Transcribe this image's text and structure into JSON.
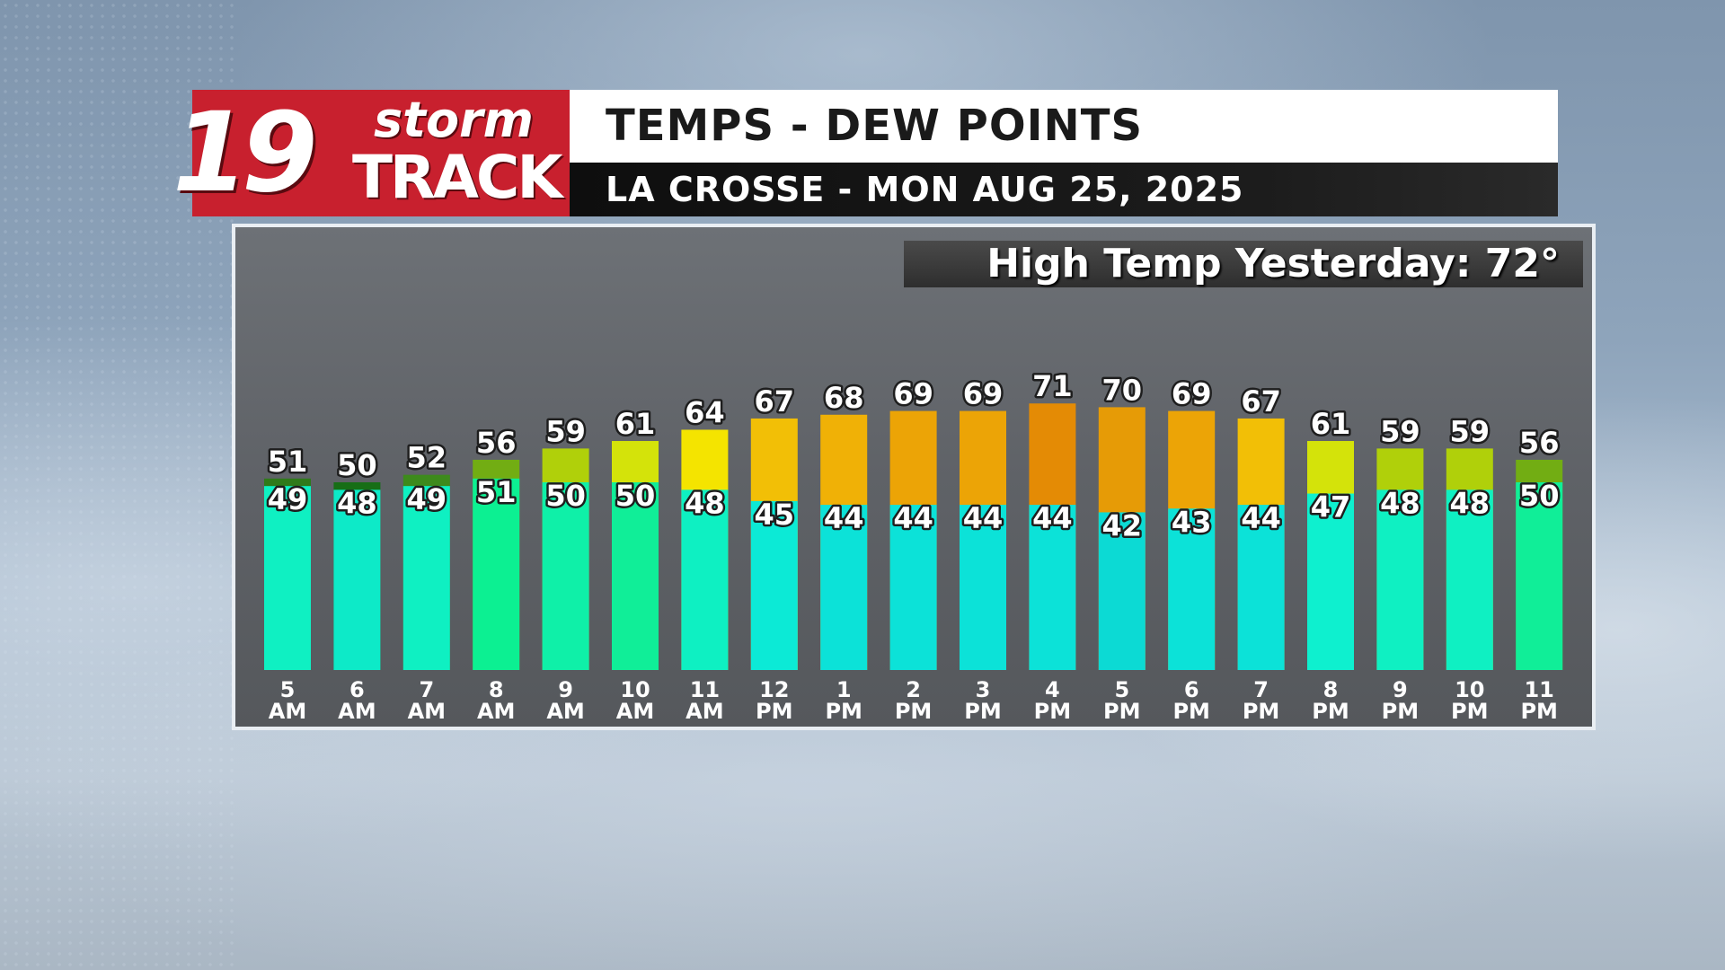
{
  "logo": {
    "number": "19",
    "word1": "storm",
    "word2": "TRACK",
    "color": "#c8202e"
  },
  "header": {
    "title": "TEMPS - DEW POINTS",
    "subtitle": "LA CROSSE - MON AUG 25, 2025"
  },
  "badge": {
    "text": "High Temp Yesterday:  72°"
  },
  "chart_data": {
    "type": "bar",
    "categories": [
      [
        "5",
        "AM"
      ],
      [
        "6",
        "AM"
      ],
      [
        "7",
        "AM"
      ],
      [
        "8",
        "AM"
      ],
      [
        "9",
        "AM"
      ],
      [
        "10",
        "AM"
      ],
      [
        "11",
        "AM"
      ],
      [
        "12",
        "PM"
      ],
      [
        "1",
        "PM"
      ],
      [
        "2",
        "PM"
      ],
      [
        "3",
        "PM"
      ],
      [
        "4",
        "PM"
      ],
      [
        "5",
        "PM"
      ],
      [
        "6",
        "PM"
      ],
      [
        "7",
        "PM"
      ],
      [
        "8",
        "PM"
      ],
      [
        "9",
        "PM"
      ],
      [
        "10",
        "PM"
      ],
      [
        "11",
        "PM"
      ]
    ],
    "series": [
      {
        "values": [
          51,
          50,
          52,
          56,
          59,
          61,
          64,
          67,
          68,
          69,
          69,
          71,
          70,
          69,
          67,
          61,
          59,
          59,
          56
        ]
      },
      {
        "values": [
          49,
          48,
          49,
          51,
          50,
          50,
          48,
          45,
          44,
          44,
          44,
          44,
          42,
          43,
          44,
          47,
          48,
          48,
          50
        ]
      }
    ],
    "temp_colors": [
      "#2f7a1a",
      "#176e16",
      "#3d8a1c",
      "#72ad13",
      "#b0d00a",
      "#d4e30a",
      "#f4e400",
      "#f2bf06",
      "#f0b106",
      "#eca406",
      "#eca406",
      "#e48b05",
      "#e69b06",
      "#eca406",
      "#f2bf06",
      "#d4e30a",
      "#b0d00a",
      "#b0d00a",
      "#72ad13"
    ],
    "dew_colors": [
      "#0ff0c2",
      "#0deac8",
      "#0ff0c2",
      "#0cf092",
      "#0ff0a8",
      "#10ee98",
      "#0ef0c2",
      "#0cead6",
      "#0ce2d8",
      "#0ce2d8",
      "#0ce2d8",
      "#0ce2d8",
      "#0cdad4",
      "#0ce2d8",
      "#0ce2d8",
      "#0ef0cf",
      "#0ff0c2",
      "#0ff0c2",
      "#10ee98"
    ],
    "ylim": [
      0,
      80
    ],
    "grid": false,
    "legend": "none"
  }
}
